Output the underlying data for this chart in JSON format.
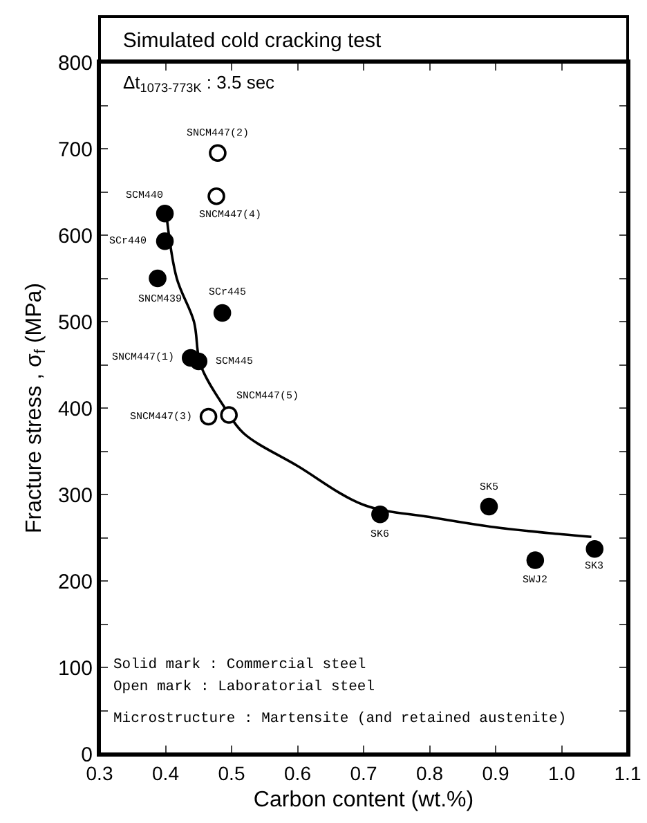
{
  "chart_data": {
    "type": "scatter",
    "title": "Simulated cold cracking test",
    "subtitle": "Δt$_{1073-773K}$ : 3.5 sec",
    "xlabel": "Carbon content (wt.%)",
    "ylabel": "Fracture stress , σ$_{f}$ (MPa)",
    "xlim": [
      0.3,
      1.1
    ],
    "ylim": [
      0,
      800
    ],
    "xticks": [
      0.3,
      0.4,
      0.5,
      {
        "value": 0.6,
        "label": "0.6"
      },
      0.7,
      0.8,
      0.9,
      {
        "value": 1,
        "label": "1.0"
      },
      1.1
    ],
    "yticks": [
      0,
      {
        "value": 50,
        "label": null
      },
      100,
      {
        "value": 150,
        "label": null
      },
      200,
      {
        "value": 250,
        "label": null
      },
      300,
      {
        "value": 350,
        "label": null
      },
      400,
      {
        "value": 450,
        "label": null
      },
      500,
      {
        "value": 550,
        "label": null
      },
      600,
      {
        "value": 650,
        "label": null
      },
      700,
      {
        "value": 750,
        "label": null
      },
      800
    ],
    "grid": false,
    "marker": "circle",
    "series": [
      {
        "color": "#000000",
        "x": [
          0.399,
          0.399,
          0.388,
          0.486,
          0.438,
          0.45,
          0.725,
          0.89,
          0.96,
          1.05
        ],
        "values": [
          625,
          593,
          550,
          510,
          458,
          454,
          277,
          286,
          224,
          237
        ]
      },
      {
        "color": "#ffffff",
        "x": [
          0.479,
          0.477,
          0.465,
          0.496
        ],
        "values": [
          695,
          645,
          390,
          392
        ]
      },
      {
        "type": "line",
        "color": "#000000",
        "marker": "none",
        "line_style": "solid",
        "x": [
          0.402,
          0.417,
          0.443,
          0.453,
          0.49,
          0.518,
          0.6,
          0.7,
          0.8,
          0.9,
          1.0,
          1.045
        ],
        "values": [
          619,
          550,
          500,
          450,
          400,
          371,
          333,
          288,
          274,
          262,
          254,
          251
        ]
      }
    ],
    "annotations": [
      "Solid mark : Commercial steel",
      "Open mark : Laboratorial steel",
      "Microstructure : Martensite (and retained austenite)",
      {
        "text": "SNCM447(2)",
        "x": 0.479,
        "y": 695
      },
      {
        "text": "SNCM447(4)",
        "x": 0.477,
        "y": 645
      },
      {
        "text": "SCM440",
        "x": 0.399,
        "y": 625
      },
      {
        "text": "SCr440",
        "x": 0.399,
        "y": 593
      },
      {
        "text": "SNCM439",
        "x": 0.388,
        "y": 550
      },
      {
        "text": "SCr445",
        "x": 0.486,
        "y": 510
      },
      {
        "text": "SNCM447(1)",
        "x": 0.438,
        "y": 458
      },
      {
        "text": "SCM445",
        "x": 0.45,
        "y": 454
      },
      {
        "text": "SNCM447(3)",
        "x": 0.465,
        "y": 390
      },
      {
        "text": "SNCM447(5)",
        "x": 0.496,
        "y": 392
      },
      {
        "text": "SK6",
        "x": 0.725,
        "y": 277
      },
      {
        "text": "SK5",
        "x": 0.89,
        "y": 286
      },
      {
        "text": "SWJ2",
        "x": 0.96,
        "y": 224
      },
      {
        "text": "SK3",
        "x": 1.05,
        "y": 237
      }
    ]
  }
}
